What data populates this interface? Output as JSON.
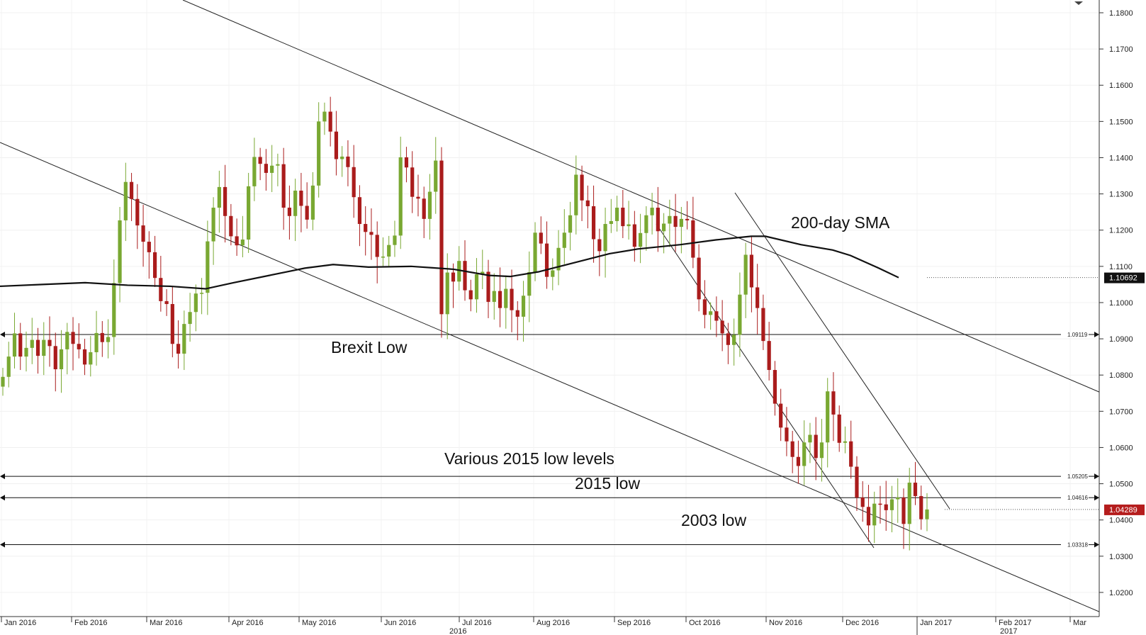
{
  "chart_data": {
    "type": "candlestick",
    "title": "",
    "xlabel": "",
    "ylabel": "",
    "ylim": [
      1.01,
      1.186
    ],
    "y_ticks": [
      "1.1800",
      "1.1700",
      "1.1600",
      "1.1500",
      "1.1400",
      "1.1300",
      "1.1200",
      "1.1100",
      "1.1000",
      "1.0900",
      "1.0800",
      "1.0700",
      "1.0600",
      "1.0500",
      "1.0400",
      "1.0300",
      "1.0200"
    ],
    "x_months": [
      "Jan 2016",
      "Feb 2016",
      "Mar 2016",
      "Apr 2016",
      "May 2016",
      "Jun 2016",
      "Jul 2016",
      "Aug 2016",
      "Sep 2016",
      "Oct 2016",
      "Nov 2016",
      "Dec 2016",
      "Jan 2017",
      "Feb 2017",
      "Mar"
    ],
    "x_years": [
      "2016",
      "2017"
    ],
    "colors": {
      "up": "#79a832",
      "down": "#aa1c1c",
      "sma": "#111111",
      "price_badge": "#b51d1d",
      "sma_badge": "#111111"
    },
    "sma": {
      "name": "200-day SMA",
      "last": "1.10692",
      "points": [
        [
          0,
          1.1045
        ],
        [
          60,
          1.105
        ],
        [
          120,
          1.1055
        ],
        [
          180,
          1.1048
        ],
        [
          240,
          1.1045
        ],
        [
          290,
          1.1038
        ],
        [
          330,
          1.1055
        ],
        [
          380,
          1.1075
        ],
        [
          430,
          1.1095
        ],
        [
          470,
          1.1105
        ],
        [
          520,
          1.1098
        ],
        [
          580,
          1.11
        ],
        [
          640,
          1.1092
        ],
        [
          690,
          1.1075
        ],
        [
          720,
          1.1072
        ],
        [
          760,
          1.1085
        ],
        [
          800,
          1.1105
        ],
        [
          860,
          1.1135
        ],
        [
          900,
          1.1148
        ],
        [
          960,
          1.116
        ],
        [
          1010,
          1.1173
        ],
        [
          1060,
          1.1183
        ],
        [
          1080,
          1.1183
        ],
        [
          1130,
          1.116
        ],
        [
          1175,
          1.1145
        ],
        [
          1200,
          1.113
        ],
        [
          1240,
          1.1095
        ],
        [
          1268,
          1.1069
        ]
      ]
    },
    "levels": [
      {
        "value": 1.09119,
        "label": "1.09119",
        "annotation": "Brexit Low"
      },
      {
        "value": 1.05205,
        "label": "1.05205",
        "annotation": "Various 2015 low levels"
      },
      {
        "value": 1.04616,
        "label": "1.04616",
        "annotation": "2015 low"
      },
      {
        "value": 1.03318,
        "label": "1.03318",
        "annotation": "2003 low"
      }
    ],
    "current_price": {
      "value": 1.04289,
      "label": "1.04289"
    },
    "candles": [
      [
        1.0768,
        1.0795
      ],
      [
        1.0795,
        1.0851
      ],
      [
        1.0851,
        1.0915
      ],
      [
        1.0915,
        1.0851
      ],
      [
        1.0851,
        1.0875
      ],
      [
        1.0875,
        1.0897
      ],
      [
        1.0897,
        1.0853
      ],
      [
        1.0853,
        1.0897
      ],
      [
        1.0897,
        1.088
      ],
      [
        1.088,
        1.0816
      ],
      [
        1.0816,
        1.0871
      ],
      [
        1.0871,
        1.0919
      ],
      [
        1.0919,
        1.0886
      ],
      [
        1.0886,
        1.0871
      ],
      [
        1.0871,
        1.0829
      ],
      [
        1.0829,
        1.0863
      ],
      [
        1.0863,
        1.0916
      ],
      [
        1.0916,
        1.0891
      ],
      [
        1.0891,
        1.0905
      ],
      [
        1.0905,
        1.1054
      ],
      [
        1.1054,
        1.1227
      ],
      [
        1.1227,
        1.1333
      ],
      [
        1.1333,
        1.1286
      ],
      [
        1.1286,
        1.1213
      ],
      [
        1.1213,
        1.1168
      ],
      [
        1.1168,
        1.1139
      ],
      [
        1.1139,
        1.1068
      ],
      [
        1.1068,
        1.1004
      ],
      [
        1.1004,
        1.0996
      ],
      [
        1.0996,
        1.0886
      ],
      [
        1.0886,
        1.0859
      ],
      [
        1.0859,
        1.0941
      ],
      [
        1.0941,
        1.0974
      ],
      [
        1.0974,
        1.1025
      ],
      [
        1.1025,
        1.1027
      ],
      [
        1.1027,
        1.1169
      ],
      [
        1.1169,
        1.1262
      ],
      [
        1.1262,
        1.1319
      ],
      [
        1.1319,
        1.1239
      ],
      [
        1.1239,
        1.1183
      ],
      [
        1.1183,
        1.1158
      ],
      [
        1.1158,
        1.1174
      ],
      [
        1.1174,
        1.1321
      ],
      [
        1.1321,
        1.1402
      ],
      [
        1.1402,
        1.1383
      ],
      [
        1.1383,
        1.1358
      ],
      [
        1.1358,
        1.1378
      ],
      [
        1.1378,
        1.1382
      ],
      [
        1.1382,
        1.1262
      ],
      [
        1.1262,
        1.1239
      ],
      [
        1.1239,
        1.1309
      ],
      [
        1.1309,
        1.1267
      ],
      [
        1.1267,
        1.1229
      ],
      [
        1.1229,
        1.1323
      ],
      [
        1.1323,
        1.15
      ],
      [
        1.15,
        1.1527
      ],
      [
        1.1527,
        1.1472
      ],
      [
        1.1472,
        1.1396
      ],
      [
        1.1396,
        1.1403
      ],
      [
        1.1403,
        1.1374
      ],
      [
        1.1374,
        1.1291
      ],
      [
        1.1291,
        1.1217
      ],
      [
        1.1217,
        1.1195
      ],
      [
        1.1195,
        1.1187
      ],
      [
        1.1187,
        1.1126
      ],
      [
        1.1126,
        1.1127
      ],
      [
        1.1127,
        1.1159
      ],
      [
        1.1159,
        1.1185
      ],
      [
        1.1185,
        1.1401
      ],
      [
        1.1401,
        1.1373
      ],
      [
        1.1373,
        1.1292
      ],
      [
        1.1292,
        1.1287
      ],
      [
        1.1287,
        1.1231
      ],
      [
        1.1231,
        1.1306
      ],
      [
        1.1306,
        1.1392
      ],
      [
        1.1392,
        1.0968
      ],
      [
        1.0968,
        1.1083
      ],
      [
        1.1083,
        1.1058
      ],
      [
        1.1058,
        1.1115
      ],
      [
        1.1115,
        1.1034
      ],
      [
        1.1034,
        1.1009
      ],
      [
        1.1009,
        1.1078
      ],
      [
        1.1078,
        1.1085
      ],
      [
        1.1085,
        1.1002
      ],
      [
        1.1002,
        1.1032
      ],
      [
        1.1032,
        1.0985
      ],
      [
        1.0985,
        1.1038
      ],
      [
        1.1038,
        1.0979
      ],
      [
        1.0979,
        1.0961
      ],
      [
        1.0961,
        1.1019
      ],
      [
        1.1019,
        1.1084
      ],
      [
        1.1084,
        1.1193
      ],
      [
        1.1193,
        1.1163
      ],
      [
        1.1163,
        1.1071
      ],
      [
        1.1071,
        1.1089
      ],
      [
        1.1089,
        1.1151
      ],
      [
        1.1151,
        1.1193
      ],
      [
        1.1193,
        1.1241
      ],
      [
        1.1241,
        1.1353
      ],
      [
        1.1353,
        1.1282
      ],
      [
        1.1282,
        1.1266
      ],
      [
        1.1266,
        1.1175
      ],
      [
        1.1175,
        1.1142
      ],
      [
        1.1142,
        1.1217
      ],
      [
        1.1217,
        1.1225
      ],
      [
        1.1225,
        1.1262
      ],
      [
        1.1262,
        1.1211
      ],
      [
        1.1211,
        1.1216
      ],
      [
        1.1216,
        1.1154
      ],
      [
        1.1154,
        1.1192
      ],
      [
        1.1192,
        1.1241
      ],
      [
        1.1241,
        1.1262
      ],
      [
        1.1262,
        1.1197
      ],
      [
        1.1197,
        1.1218
      ],
      [
        1.1218,
        1.1239
      ],
      [
        1.1239,
        1.1209
      ],
      [
        1.1209,
        1.1231
      ],
      [
        1.1231,
        1.1227
      ],
      [
        1.1227,
        1.1124
      ],
      [
        1.1124,
        1.1009
      ],
      [
        1.1009,
        1.0966
      ],
      [
        1.0966,
        1.0976
      ],
      [
        1.0976,
        1.095
      ],
      [
        1.095,
        1.0915
      ],
      [
        1.0915,
        1.0883
      ],
      [
        1.0883,
        1.0911
      ],
      [
        1.0911,
        1.1022
      ],
      [
        1.1022,
        1.1132
      ],
      [
        1.1132,
        1.1042
      ],
      [
        1.1042,
        1.0985
      ],
      [
        1.0985,
        1.0894
      ],
      [
        1.0894,
        1.0814
      ],
      [
        1.0814,
        1.0721
      ],
      [
        1.0721,
        1.0655
      ],
      [
        1.0655,
        1.0617
      ],
      [
        1.0617,
        1.0574
      ],
      [
        1.0574,
        1.0549
      ],
      [
        1.0549,
        1.0614
      ],
      [
        1.0614,
        1.0635
      ],
      [
        1.0635,
        1.0571
      ],
      [
        1.0571,
        1.0614
      ],
      [
        1.0614,
        1.0755
      ],
      [
        1.0755,
        1.0691
      ],
      [
        1.0691,
        1.0613
      ],
      [
        1.0613,
        1.0617
      ],
      [
        1.0617,
        1.0547
      ],
      [
        1.0547,
        1.0462
      ],
      [
        1.0462,
        1.0436
      ],
      [
        1.0436,
        1.0385
      ],
      [
        1.0385,
        1.0445
      ],
      [
        1.0445,
        1.0443
      ],
      [
        1.0443,
        1.0427
      ],
      [
        1.0427,
        1.0457
      ],
      [
        1.0457,
        1.0462
      ],
      [
        1.0462,
        1.0389
      ],
      [
        1.0389,
        1.0503
      ],
      [
        1.0503,
        1.0466
      ],
      [
        1.0466,
        1.0402
      ],
      [
        1.0402,
        1.0429
      ]
    ]
  }
}
